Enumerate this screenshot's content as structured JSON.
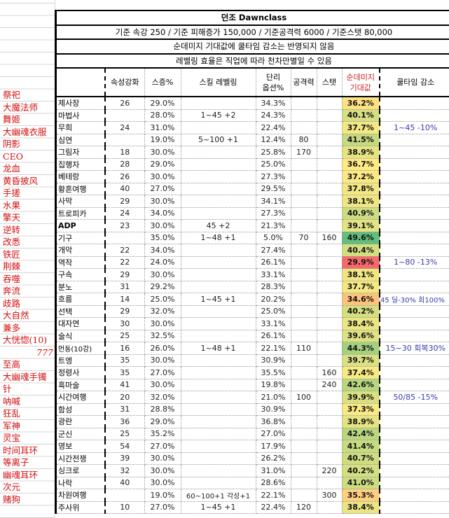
{
  "title": "던조 Dawnclass",
  "notes": [
    "기준 속강 250 / 기준 피해증가 150,000 / 기준공격력 6000 / 기준스탯 80,000",
    "순데미지 기대값에 쿨타임 감소는 반영되지 않음",
    "레벨링 효율은 직업에 따라 천차만별일 수 있음"
  ],
  "headers": [
    "",
    "속성강화",
    "스증%",
    "스킬 레벨링",
    "단리\n옵션%",
    "공격력",
    "스탯",
    "순데미지\n기대값",
    "쿨타임 감소"
  ],
  "heat_colors": {
    "low": "#f8696b",
    "mid": "#ffeb84",
    "high": "#63be7b"
  },
  "rows": [
    {
      "label": "祭祀",
      "name": "제사장",
      "elem": "26",
      "skill_pct": "29.0%",
      "level": "",
      "single": "34.3%",
      "atk": "",
      "stat": "",
      "net": "36.2%",
      "cd": ""
    },
    {
      "label": "大魔法师",
      "name": "마법사",
      "elem": "",
      "skill_pct": "28.0%",
      "level": "1~45 +2",
      "single": "24.3%",
      "atk": "",
      "stat": "",
      "net": "40.1%",
      "cd": ""
    },
    {
      "label": "舞姬",
      "name": "무희",
      "elem": "24",
      "skill_pct": "31.0%",
      "level": "",
      "single": "22.4%",
      "atk": "",
      "stat": "",
      "net": "37.7%",
      "cd": "1~45 -10%"
    },
    {
      "label": "大幽魂衣服",
      "name": "심연",
      "elem": "",
      "skill_pct": "19.0%",
      "level": "5~100 +1",
      "single": "12.4%",
      "atk": "80",
      "stat": "",
      "net": "41.5%",
      "cd": ""
    },
    {
      "label": "阴影",
      "name": "그림자",
      "elem": "18",
      "skill_pct": "30.0%",
      "level": "",
      "single": "25.8%",
      "atk": "170",
      "stat": "",
      "net": "38.9%",
      "cd": ""
    },
    {
      "label": "CEO",
      "name": "집행자",
      "elem": "28",
      "skill_pct": "29.0%",
      "level": "",
      "single": "25.0%",
      "atk": "",
      "stat": "",
      "net": "36.7%",
      "cd": ""
    },
    {
      "label": "龙血",
      "name": "베테랑",
      "elem": "26",
      "skill_pct": "30.0%",
      "level": "",
      "single": "27.3%",
      "atk": "",
      "stat": "",
      "net": "37.2%",
      "cd": ""
    },
    {
      "label": "黄昏披风",
      "name": "황혼여행",
      "elem": "40",
      "skill_pct": "27.0%",
      "level": "",
      "single": "29.5%",
      "atk": "",
      "stat": "",
      "net": "37.8%",
      "cd": ""
    },
    {
      "label": "手搓",
      "name": "사막",
      "elem": "29",
      "skill_pct": "30.0%",
      "level": "",
      "single": "34.1%",
      "atk": "",
      "stat": "",
      "net": "38.1%",
      "cd": ""
    },
    {
      "label": "水果",
      "name": "트로피카",
      "elem": "24",
      "skill_pct": "34.0%",
      "level": "",
      "single": "27.3%",
      "atk": "",
      "stat": "",
      "net": "40.9%",
      "cd": ""
    },
    {
      "label": "擎天",
      "name": "ADP",
      "elem": "23",
      "skill_pct": "30.0%",
      "level": "45 +2",
      "single": "21.3%",
      "atk": "",
      "stat": "",
      "net": "39.1%",
      "cd": "",
      "bold": true
    },
    {
      "label": "逆转",
      "name": "기구",
      "elem": "",
      "skill_pct": "35.0%",
      "level": "1~48 +1",
      "single": "5.0%",
      "atk": "70",
      "stat": "160",
      "net": "49.6%",
      "cd": ""
    },
    {
      "label": "改悉",
      "name": "개악",
      "elem": "22",
      "skill_pct": "34.0%",
      "level": "",
      "single": "27.4%",
      "atk": "",
      "stat": "",
      "net": "40.4%",
      "cd": ""
    },
    {
      "label": "铁匠",
      "name": "역작",
      "elem": "22",
      "skill_pct": "24.0%",
      "level": "",
      "single": "26.1%",
      "atk": "",
      "stat": "",
      "net": "29.9%",
      "cd": "1~80 -13%"
    },
    {
      "label": "荆棘",
      "name": "구속",
      "elem": "29",
      "skill_pct": "30.0%",
      "level": "",
      "single": "33.1%",
      "atk": "",
      "stat": "",
      "net": "38.1%",
      "cd": ""
    },
    {
      "label": "吞噬",
      "name": "분노",
      "elem": "31",
      "skill_pct": "29.2%",
      "level": "",
      "single": "28.3%",
      "atk": "",
      "stat": "",
      "net": "37.7%",
      "cd": ""
    },
    {
      "label": "奔流",
      "name": "흐름",
      "elem": "14",
      "skill_pct": "25.0%",
      "level": "1~45 +1",
      "single": "20.2%",
      "atk": "",
      "stat": "",
      "net": "34.6%",
      "cd": "45 딜-30% 회100%"
    },
    {
      "label": "歧路",
      "name": "선택",
      "elem": "29",
      "skill_pct": "32.0%",
      "level": "",
      "single": "25.0%",
      "atk": "",
      "stat": "",
      "net": "40.2%",
      "cd": ""
    },
    {
      "label": "大自然",
      "name": "대자연",
      "elem": "30",
      "skill_pct": "30.0%",
      "level": "",
      "single": "33.1%",
      "atk": "",
      "stat": "",
      "net": "38.4%",
      "cd": ""
    },
    {
      "label": "兼多",
      "name": "술식",
      "elem": "25",
      "skill_pct": "32.5%",
      "level": "",
      "single": "26.1%",
      "atk": "",
      "stat": "",
      "net": "39.6%",
      "cd": ""
    },
    {
      "label": "大恍惚(10)",
      "name": "먼동(10강)",
      "elem": "16",
      "skill_pct": "26.0%",
      "level": "1~48 +1",
      "single": "22.1%",
      "atk": "110",
      "stat": "",
      "net": "44.3%",
      "cd": "15~30 회복30%"
    },
    {
      "label": "777",
      "name": "트엥",
      "elem": "35",
      "skill_pct": "30.0%",
      "level": "",
      "single": "30.9%",
      "atk": "",
      "stat": "",
      "net": "39.7%",
      "cd": "",
      "right": true
    },
    {
      "label": "至高",
      "name": "정령사",
      "elem": "35",
      "skill_pct": "27.0%",
      "level": "",
      "single": "35.5%",
      "atk": "",
      "stat": "160",
      "net": "37.4%",
      "cd": ""
    },
    {
      "label": "大幽魂手镯",
      "name": "흑마술",
      "elem": "41",
      "skill_pct": "30.0%",
      "level": "",
      "single": "19.8%",
      "atk": "",
      "stat": "240",
      "net": "42.6%",
      "cd": ""
    },
    {
      "label": "针",
      "name": "시간여행",
      "elem": "20",
      "skill_pct": "32.0%",
      "level": "",
      "single": "21.0%",
      "atk": "100",
      "stat": "",
      "net": "39.9%",
      "cd": "50/85 -15%"
    },
    {
      "label": "呐喊",
      "name": "함성",
      "elem": "31",
      "skill_pct": "28.8%",
      "level": "",
      "single": "30.9%",
      "atk": "",
      "stat": "",
      "net": "37.3%",
      "cd": ""
    },
    {
      "label": "狂乱",
      "name": "광란",
      "elem": "36",
      "skill_pct": "29.0%",
      "level": "",
      "single": "36.8%",
      "atk": "",
      "stat": "",
      "net": "38.9%",
      "cd": ""
    },
    {
      "label": "军神",
      "name": "군신",
      "elem": "25",
      "skill_pct": "35.2%",
      "level": "",
      "single": "27.0%",
      "atk": "",
      "stat": "",
      "net": "42.4%",
      "cd": ""
    },
    {
      "label": "灵宝",
      "name": "영보",
      "elem": "54",
      "skill_pct": "27.0%",
      "level": "",
      "single": "17.9%",
      "atk": "",
      "stat": "",
      "net": "41.4%",
      "cd": ""
    },
    {
      "label": "时间耳环",
      "name": "시간전쟁",
      "elem": "39",
      "skill_pct": "30.0%",
      "level": "",
      "single": "26.2%",
      "atk": "",
      "stat": "",
      "net": "40.7%",
      "cd": ""
    },
    {
      "label": "等离子",
      "name": "싱크로",
      "elem": "32",
      "skill_pct": "30.0%",
      "level": "",
      "single": "31.0%",
      "atk": "",
      "stat": "220",
      "net": "40.2%",
      "cd": ""
    },
    {
      "label": "幽魂耳环",
      "name": "나락",
      "elem": "40",
      "skill_pct": "30.0%",
      "level": "",
      "single": "28.6%",
      "atk": "",
      "stat": "",
      "net": "41.0%",
      "cd": ""
    },
    {
      "label": "次元",
      "name": "차원여행",
      "elem": "",
      "skill_pct": "19.0%",
      "level": "60~100+1 각성+1",
      "single": "22.1%",
      "atk": "",
      "stat": "300",
      "net": "35.3%",
      "cd": ""
    },
    {
      "label": "赌狗",
      "name": "주사위",
      "elem": "10",
      "skill_pct": "27.0%",
      "level": "1~45 +1",
      "single": "22.4%",
      "atk": "120",
      "stat": "",
      "net": "38.4%",
      "cd": ""
    }
  ]
}
